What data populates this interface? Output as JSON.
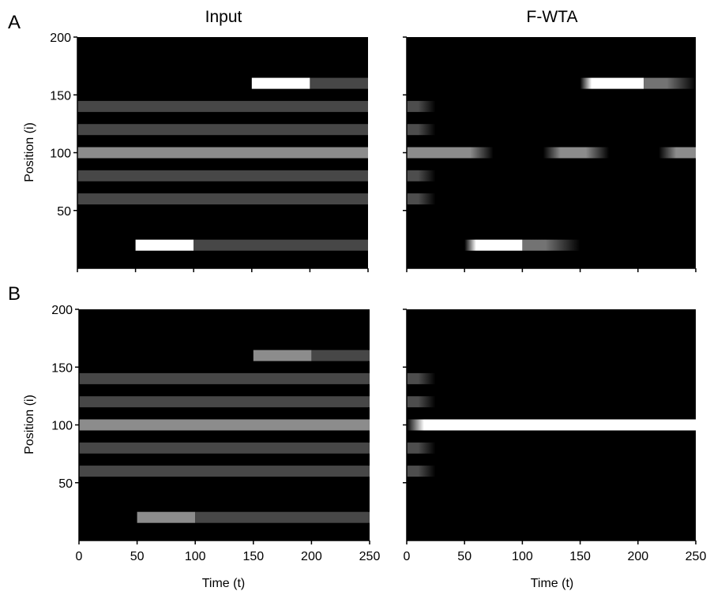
{
  "figure": {
    "col_titles": [
      "Input",
      "F-WTA"
    ],
    "panel_letters": [
      "A",
      "B"
    ],
    "ylabel": "Position (i)",
    "xlabel": "Time (t)",
    "xticks": [
      0,
      50,
      100,
      150,
      200,
      250
    ],
    "yticks": [
      50,
      100,
      150,
      200
    ]
  },
  "chart_data": [
    {
      "type": "heatmap",
      "panel": "A",
      "title": "Input",
      "xlim": [
        0,
        250
      ],
      "ylim": [
        0,
        200
      ],
      "background": "#000000",
      "bands": [
        {
          "y": 160,
          "segments": [
            {
              "t0": 150,
              "t1": 200,
              "intensity": 1.0,
              "ramp_in": 0,
              "ramp_out": 0
            },
            {
              "t0": 200,
              "t1": 250,
              "intensity": 0.28,
              "ramp_in": 0,
              "ramp_out": 0
            }
          ]
        },
        {
          "y": 140,
          "segments": [
            {
              "t0": 0,
              "t1": 250,
              "intensity": 0.28,
              "ramp_in": 0,
              "ramp_out": 0
            }
          ]
        },
        {
          "y": 120,
          "segments": [
            {
              "t0": 0,
              "t1": 250,
              "intensity": 0.28,
              "ramp_in": 0,
              "ramp_out": 0
            }
          ]
        },
        {
          "y": 100,
          "segments": [
            {
              "t0": 0,
              "t1": 250,
              "intensity": 0.55,
              "ramp_in": 0,
              "ramp_out": 0
            }
          ]
        },
        {
          "y": 80,
          "segments": [
            {
              "t0": 0,
              "t1": 250,
              "intensity": 0.28,
              "ramp_in": 0,
              "ramp_out": 0
            }
          ]
        },
        {
          "y": 60,
          "segments": [
            {
              "t0": 0,
              "t1": 250,
              "intensity": 0.28,
              "ramp_in": 0,
              "ramp_out": 0
            }
          ]
        },
        {
          "y": 20,
          "segments": [
            {
              "t0": 50,
              "t1": 100,
              "intensity": 1.0,
              "ramp_in": 0,
              "ramp_out": 0
            },
            {
              "t0": 100,
              "t1": 250,
              "intensity": 0.28,
              "ramp_in": 0,
              "ramp_out": 0
            }
          ]
        }
      ]
    },
    {
      "type": "heatmap",
      "panel": "A",
      "title": "F-WTA",
      "xlim": [
        0,
        250
      ],
      "ylim": [
        0,
        200
      ],
      "background": "#000000",
      "bands": [
        {
          "y": 160,
          "segments": [
            {
              "t0": 150,
              "t1": 205,
              "intensity": 1.0,
              "ramp_in": 10,
              "ramp_out": 0
            },
            {
              "t0": 205,
              "t1": 250,
              "intensity": 0.45,
              "ramp_in": 0,
              "ramp_out": 25
            }
          ]
        },
        {
          "y": 140,
          "segments": [
            {
              "t0": 0,
              "t1": 25,
              "intensity": 0.3,
              "ramp_in": 0,
              "ramp_out": 15
            }
          ]
        },
        {
          "y": 120,
          "segments": [
            {
              "t0": 0,
              "t1": 25,
              "intensity": 0.3,
              "ramp_in": 0,
              "ramp_out": 15
            }
          ]
        },
        {
          "y": 100,
          "segments": [
            {
              "t0": 0,
              "t1": 75,
              "intensity": 0.55,
              "ramp_in": 0,
              "ramp_out": 20
            },
            {
              "t0": 118,
              "t1": 175,
              "intensity": 0.55,
              "ramp_in": 15,
              "ramp_out": 20
            },
            {
              "t0": 218,
              "t1": 250,
              "intensity": 0.55,
              "ramp_in": 15,
              "ramp_out": 0
            }
          ]
        },
        {
          "y": 80,
          "segments": [
            {
              "t0": 0,
              "t1": 25,
              "intensity": 0.3,
              "ramp_in": 0,
              "ramp_out": 15
            }
          ]
        },
        {
          "y": 60,
          "segments": [
            {
              "t0": 0,
              "t1": 25,
              "intensity": 0.3,
              "ramp_in": 0,
              "ramp_out": 15
            }
          ]
        },
        {
          "y": 20,
          "segments": [
            {
              "t0": 50,
              "t1": 100,
              "intensity": 1.0,
              "ramp_in": 10,
              "ramp_out": 0
            },
            {
              "t0": 100,
              "t1": 150,
              "intensity": 0.45,
              "ramp_in": 0,
              "ramp_out": 30
            }
          ]
        }
      ]
    },
    {
      "type": "heatmap",
      "panel": "B",
      "title": "Input",
      "xlim": [
        0,
        250
      ],
      "ylim": [
        0,
        200
      ],
      "background": "#000000",
      "bands": [
        {
          "y": 160,
          "segments": [
            {
              "t0": 150,
              "t1": 200,
              "intensity": 0.55,
              "ramp_in": 0,
              "ramp_out": 0
            },
            {
              "t0": 200,
              "t1": 250,
              "intensity": 0.28,
              "ramp_in": 0,
              "ramp_out": 0
            }
          ]
        },
        {
          "y": 140,
          "segments": [
            {
              "t0": 0,
              "t1": 250,
              "intensity": 0.28,
              "ramp_in": 0,
              "ramp_out": 0
            }
          ]
        },
        {
          "y": 120,
          "segments": [
            {
              "t0": 0,
              "t1": 250,
              "intensity": 0.28,
              "ramp_in": 0,
              "ramp_out": 0
            }
          ]
        },
        {
          "y": 100,
          "segments": [
            {
              "t0": 0,
              "t1": 250,
              "intensity": 0.55,
              "ramp_in": 0,
              "ramp_out": 0
            }
          ]
        },
        {
          "y": 80,
          "segments": [
            {
              "t0": 0,
              "t1": 250,
              "intensity": 0.28,
              "ramp_in": 0,
              "ramp_out": 0
            }
          ]
        },
        {
          "y": 60,
          "segments": [
            {
              "t0": 0,
              "t1": 250,
              "intensity": 0.28,
              "ramp_in": 0,
              "ramp_out": 0
            }
          ]
        },
        {
          "y": 20,
          "segments": [
            {
              "t0": 50,
              "t1": 100,
              "intensity": 0.55,
              "ramp_in": 0,
              "ramp_out": 0
            },
            {
              "t0": 100,
              "t1": 250,
              "intensity": 0.28,
              "ramp_in": 0,
              "ramp_out": 0
            }
          ]
        }
      ]
    },
    {
      "type": "heatmap",
      "panel": "B",
      "title": "F-WTA",
      "xlim": [
        0,
        250
      ],
      "ylim": [
        0,
        200
      ],
      "background": "#000000",
      "bands": [
        {
          "y": 140,
          "segments": [
            {
              "t0": 0,
              "t1": 25,
              "intensity": 0.3,
              "ramp_in": 0,
              "ramp_out": 15
            }
          ]
        },
        {
          "y": 120,
          "segments": [
            {
              "t0": 0,
              "t1": 25,
              "intensity": 0.3,
              "ramp_in": 0,
              "ramp_out": 15
            }
          ]
        },
        {
          "y": 100,
          "segments": [
            {
              "t0": 0,
              "t1": 250,
              "intensity": 1.0,
              "ramp_in": 15,
              "ramp_out": 0
            }
          ]
        },
        {
          "y": 80,
          "segments": [
            {
              "t0": 0,
              "t1": 25,
              "intensity": 0.3,
              "ramp_in": 0,
              "ramp_out": 15
            }
          ]
        },
        {
          "y": 60,
          "segments": [
            {
              "t0": 0,
              "t1": 25,
              "intensity": 0.3,
              "ramp_in": 0,
              "ramp_out": 15
            }
          ]
        }
      ]
    }
  ]
}
